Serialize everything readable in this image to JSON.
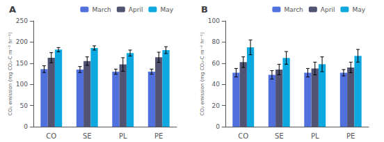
{
  "chart_data": [
    {
      "type": "bar",
      "title": "A",
      "categories": [
        "CO",
        "SE",
        "PL",
        "PE"
      ],
      "series": [
        {
          "name": "March",
          "values": [
            136,
            135,
            130,
            130
          ],
          "errors": [
            8,
            7,
            6,
            6
          ]
        },
        {
          "name": "April",
          "values": [
            163,
            155,
            147,
            164
          ],
          "errors": [
            12,
            10,
            16,
            12
          ]
        },
        {
          "name": "May",
          "values": [
            182,
            186,
            174,
            181
          ],
          "errors": [
            5,
            5,
            7,
            8
          ]
        }
      ],
      "ylabel": "CO₂ emission (mg CO₂-C m⁻² hr⁻¹)",
      "ylim": [
        0,
        250
      ],
      "yticks": [
        0,
        50,
        100,
        150,
        200,
        250
      ],
      "grid": false,
      "legend": "upper right"
    },
    {
      "type": "bar",
      "title": "B",
      "categories": [
        "CO",
        "SE",
        "PL",
        "PE"
      ],
      "series": [
        {
          "name": "March",
          "values": [
            51,
            49,
            51,
            51
          ],
          "errors": [
            4,
            4,
            4,
            3
          ]
        },
        {
          "name": "April",
          "values": [
            61,
            54,
            55,
            56
          ],
          "errors": [
            5,
            5,
            6,
            5
          ]
        },
        {
          "name": "May",
          "values": [
            75,
            65,
            59,
            67
          ],
          "errors": [
            7,
            6,
            7,
            6
          ]
        }
      ],
      "ylabel": "CO₂ emission (mg CO₂-C m⁻² hr⁻¹)",
      "ylim": [
        0,
        100
      ],
      "yticks": [
        0,
        20,
        40,
        60,
        80,
        100
      ],
      "grid": false,
      "legend": "upper right"
    }
  ]
}
